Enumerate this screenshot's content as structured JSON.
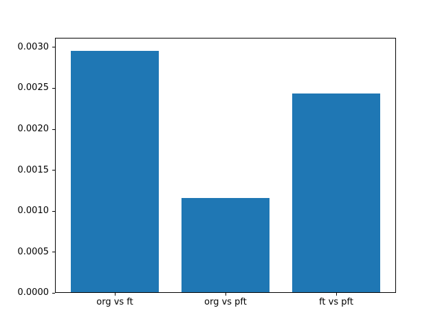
{
  "chart_data": {
    "type": "bar",
    "title": "",
    "xlabel": "",
    "ylabel": "",
    "categories": [
      "org vs ft",
      "org vs pft",
      "ft vs pft"
    ],
    "values": [
      0.00296,
      0.00116,
      0.00244
    ],
    "bar_color": "#1f77b4",
    "bar_width": 0.8,
    "xlim": [
      -0.54,
      2.54
    ],
    "ylim": [
      0,
      0.003117
    ],
    "yticks": [
      0.0,
      0.0005,
      0.001,
      0.0015,
      0.002,
      0.0025,
      0.003
    ],
    "ytick_labels": [
      "0.0000",
      "0.0005",
      "0.0010",
      "0.0015",
      "0.0020",
      "0.0025",
      "0.0030"
    ],
    "grid": false,
    "legend": null,
    "frame_color": "#000000",
    "background_color": "#ffffff"
  }
}
